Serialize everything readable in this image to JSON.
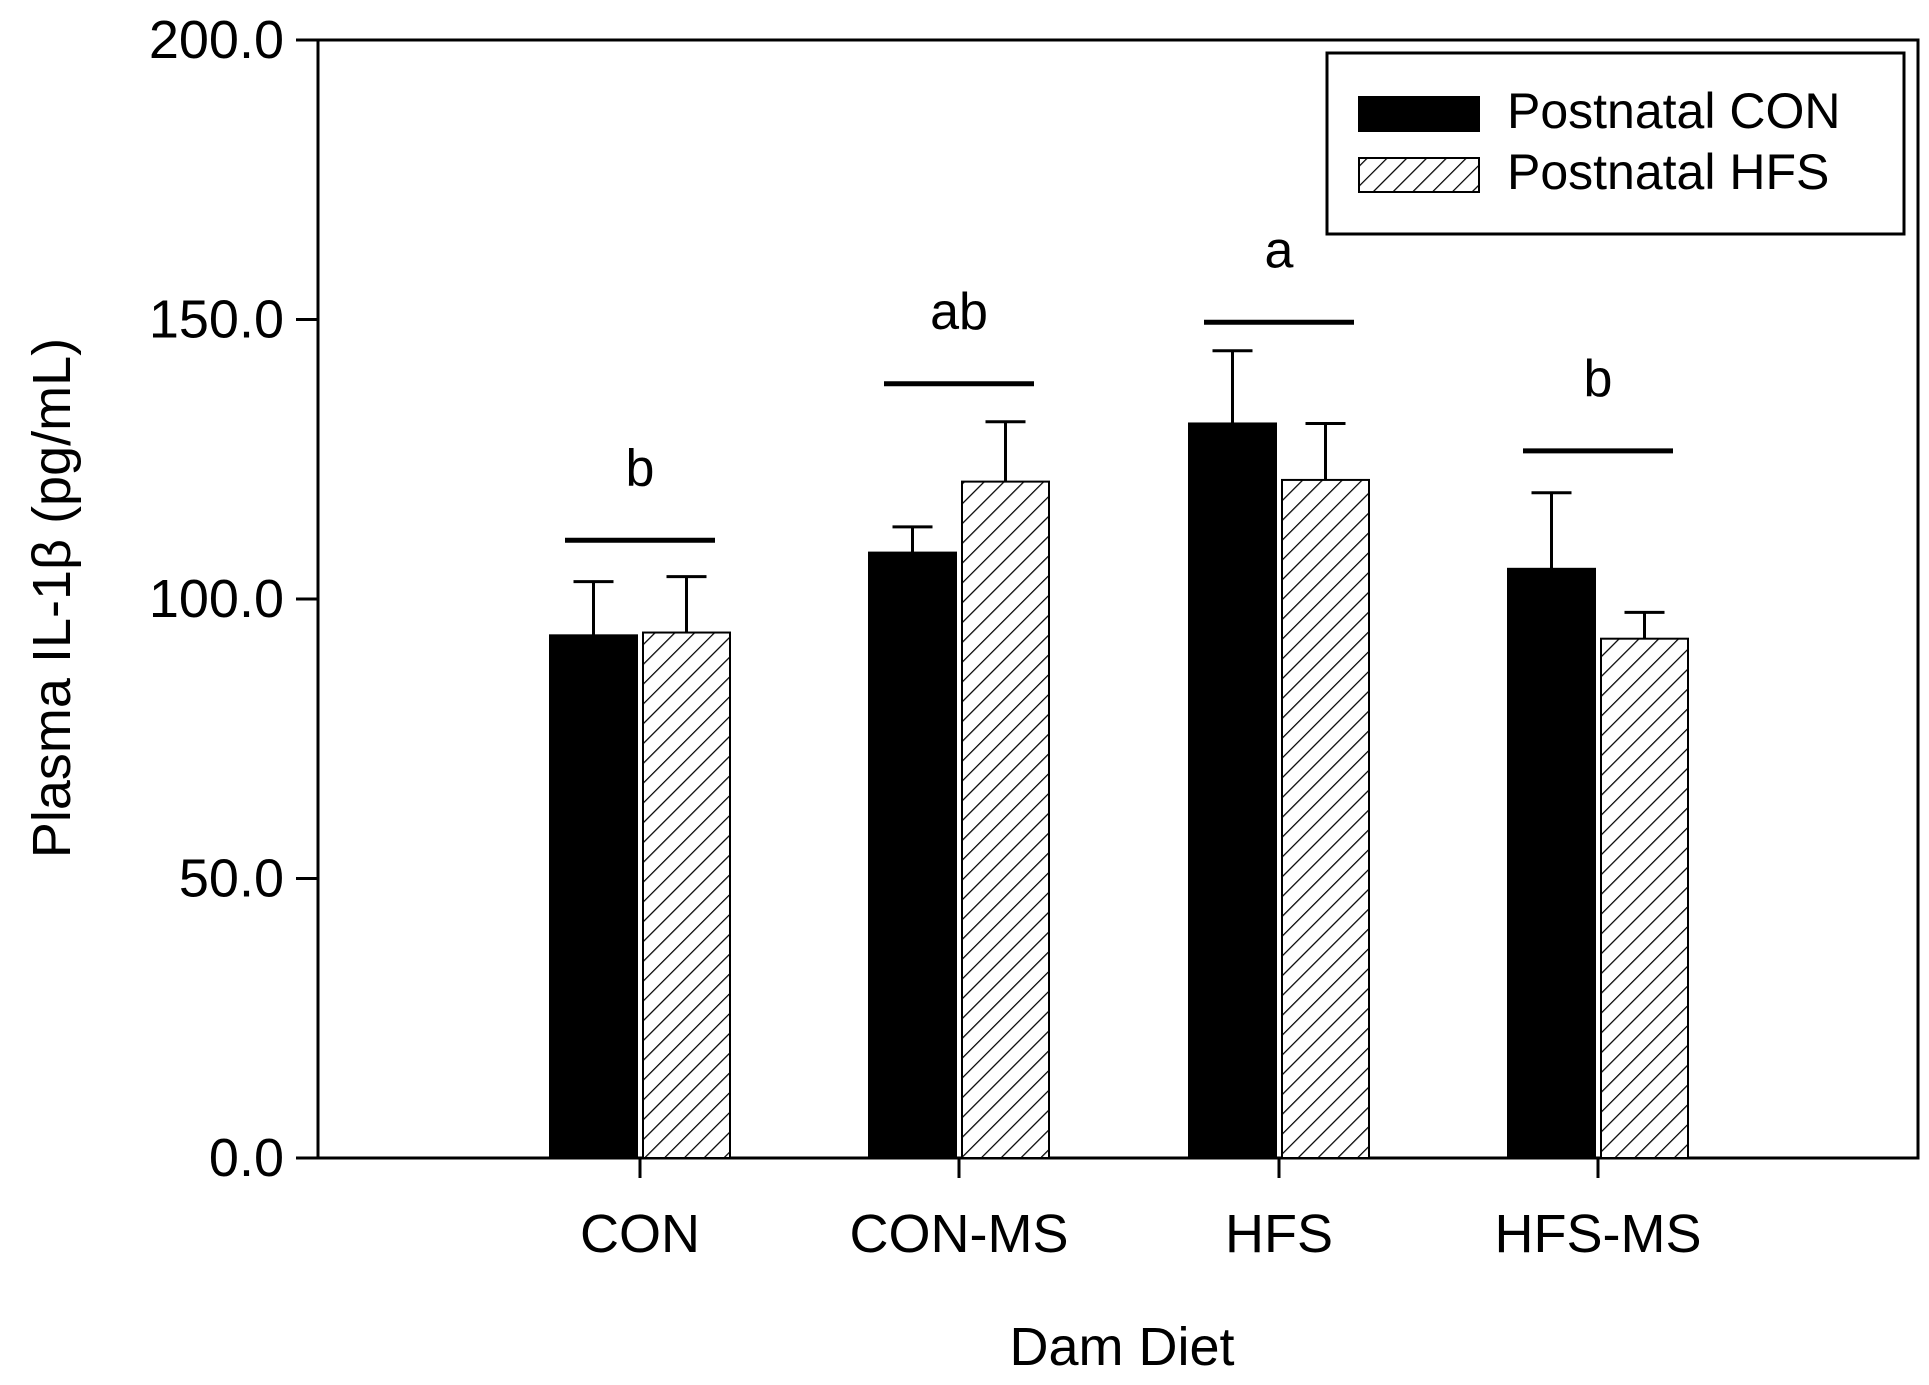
{
  "chart_data": {
    "type": "bar",
    "title": "",
    "xlabel": "Dam Diet",
    "ylabel": "Plasma IL-1β (pg/mL)",
    "ylim": [
      0,
      200
    ],
    "yticks": [
      "0.0",
      "50.0",
      "100.0",
      "150.0",
      "200.0"
    ],
    "grid": false,
    "legend_position": "top-right",
    "categories": [
      "CON",
      "CON-MS",
      "HFS",
      "HFS-MS"
    ],
    "series": [
      {
        "name": "Postnatal CON",
        "fill": "solid",
        "color": "#000000",
        "values": [
          93.5,
          108.3,
          131.4,
          105.4
        ],
        "errors": [
          9.6,
          4.6,
          13.0,
          13.6
        ]
      },
      {
        "name": "Postnatal HFS",
        "fill": "hatched",
        "color": "#000000",
        "values": [
          94.0,
          121.0,
          121.3,
          92.9
        ],
        "errors": [
          10.0,
          10.7,
          10.1,
          4.7
        ]
      }
    ],
    "annotations": [
      {
        "category": "CON",
        "text": "b",
        "bracket_at": 110.5
      },
      {
        "category": "CON-MS",
        "text": "ab",
        "bracket_at": 138.5
      },
      {
        "category": "HFS",
        "text": "a",
        "bracket_at": 149.5
      },
      {
        "category": "HFS-MS",
        "text": "b",
        "bracket_at": 126.5
      }
    ]
  }
}
